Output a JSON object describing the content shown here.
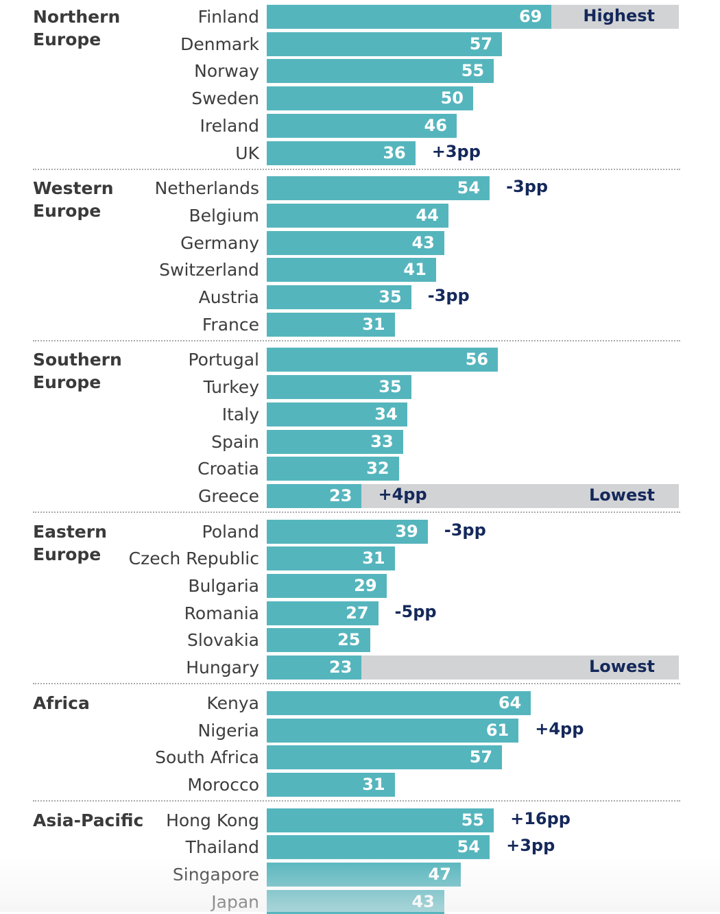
{
  "chart_data": {
    "type": "bar",
    "orientation": "horizontal",
    "xlim": [
      0,
      100
    ],
    "grid": false,
    "colors": {
      "bar": "#55b5bd",
      "band": "#d2d3d5",
      "value_text": "#ffffff",
      "change_text": "#14285a",
      "label_text": "#3d3d3d"
    },
    "groups": [
      {
        "name": "Northern Europe",
        "rows": [
          {
            "country": "Finland",
            "value": 69,
            "band": "Highest"
          },
          {
            "country": "Denmark",
            "value": 57
          },
          {
            "country": "Norway",
            "value": 55
          },
          {
            "country": "Sweden",
            "value": 50
          },
          {
            "country": "Ireland",
            "value": 46
          },
          {
            "country": "UK",
            "value": 36,
            "change": "+3pp"
          }
        ]
      },
      {
        "name": "Western Europe",
        "rows": [
          {
            "country": "Netherlands",
            "value": 54,
            "change": "-3pp"
          },
          {
            "country": "Belgium",
            "value": 44
          },
          {
            "country": "Germany",
            "value": 43
          },
          {
            "country": "Switzerland",
            "value": 41
          },
          {
            "country": "Austria",
            "value": 35,
            "change": "-3pp"
          },
          {
            "country": "France",
            "value": 31
          }
        ]
      },
      {
        "name": "Southern Europe",
        "rows": [
          {
            "country": "Portugal",
            "value": 56
          },
          {
            "country": "Turkey",
            "value": 35
          },
          {
            "country": "Italy",
            "value": 34
          },
          {
            "country": "Spain",
            "value": 33
          },
          {
            "country": "Croatia",
            "value": 32
          },
          {
            "country": "Greece",
            "value": 23,
            "change": "+4pp",
            "band": "Lowest"
          }
        ]
      },
      {
        "name": "Eastern Europe",
        "rows": [
          {
            "country": "Poland",
            "value": 39,
            "change": "-3pp"
          },
          {
            "country": "Czech Republic",
            "value": 31
          },
          {
            "country": "Bulgaria",
            "value": 29
          },
          {
            "country": "Romania",
            "value": 27,
            "change": "-5pp"
          },
          {
            "country": "Slovakia",
            "value": 25
          },
          {
            "country": "Hungary",
            "value": 23,
            "band": "Lowest"
          }
        ]
      },
      {
        "name": "Africa",
        "rows": [
          {
            "country": "Kenya",
            "value": 64
          },
          {
            "country": "Nigeria",
            "value": 61,
            "change": "+4pp"
          },
          {
            "country": "South Africa",
            "value": 57
          },
          {
            "country": "Morocco",
            "value": 31
          }
        ]
      },
      {
        "name": "Asia-Pacific",
        "rows": [
          {
            "country": "Hong Kong",
            "value": 55,
            "change": "+16pp"
          },
          {
            "country": "Thailand",
            "value": 54,
            "change": "+3pp"
          },
          {
            "country": "Singapore",
            "value": 47
          },
          {
            "country": "Japan",
            "value": 43
          }
        ]
      }
    ]
  }
}
